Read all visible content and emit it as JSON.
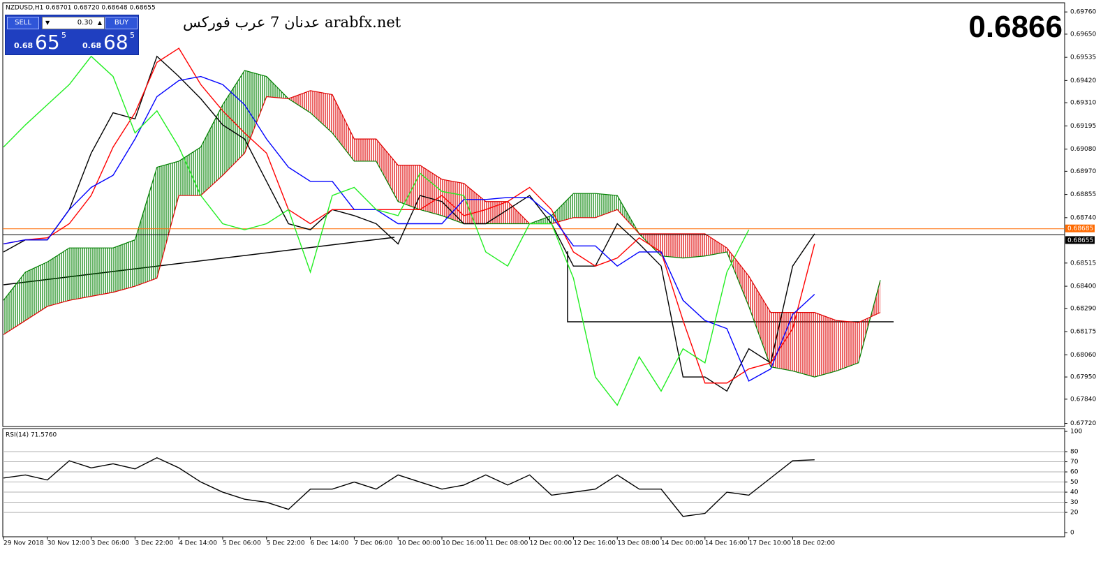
{
  "chart_data": [
    {
      "type": "line",
      "title": "NZDUSD,H1  0.68701 0.68720 0.68648 0.68655",
      "categories": [
        "29 Nov 2018",
        null,
        "30 Nov 12:00",
        null,
        "3 Dec 06:00",
        null,
        "3 Dec 22:00",
        null,
        "4 Dec 14:00",
        null,
        "5 Dec 06:00",
        null,
        "5 Dec 22:00",
        null,
        "6 Dec 14:00",
        null,
        "7 Dec 06:00",
        null,
        "10 Dec 00:00",
        null,
        "10 Dec 16:00",
        null,
        "11 Dec 08:00",
        null,
        "12 Dec 00:00",
        null,
        "12 Dec 16:00",
        null,
        "13 Dec 08:00",
        null,
        "14 Dec 00:00",
        null,
        "14 Dec 16:00",
        null,
        "17 Dec 10:00",
        null,
        "18 Dec 02:00",
        null,
        null,
        null,
        null
      ],
      "series": [
        {
          "color": "#000000",
          "values": [
            0.6857,
            0.6863,
            0.6863,
            0.6878,
            0.6906,
            0.6926,
            0.6923,
            0.6954,
            0.6944,
            0.6933,
            0.692,
            0.6913,
            0.6892,
            0.6871,
            0.6868,
            0.6878,
            0.6875,
            0.6871,
            0.6861,
            0.6885,
            0.6882,
            0.6871,
            0.6871,
            0.6878,
            0.6885,
            0.6871,
            0.685,
            0.685,
            0.6871,
            0.6861,
            0.685,
            0.6795,
            0.6795,
            0.6788,
            0.6809,
            0.6802,
            0.685,
            0.6866,
            null,
            null,
            null
          ]
        },
        {
          "color": "#ff0000",
          "values": [
            0.6861,
            0.6863,
            0.6864,
            0.6871,
            0.6885,
            0.6909,
            0.6926,
            0.6951,
            0.6958,
            0.694,
            0.6927,
            0.6916,
            0.6906,
            0.6878,
            0.6871,
            0.6878,
            0.6878,
            0.6878,
            0.6878,
            0.6878,
            0.6885,
            0.6875,
            0.6878,
            0.6882,
            0.6889,
            0.6878,
            0.6857,
            0.685,
            0.6854,
            0.6864,
            0.6857,
            0.6823,
            0.6792,
            0.6792,
            0.6799,
            0.6802,
            0.6819,
            0.6861,
            null,
            null,
            null
          ]
        },
        {
          "color": "#0000ff",
          "values": [
            0.6861,
            0.6863,
            0.6863,
            0.6878,
            0.6889,
            0.6895,
            0.6913,
            0.6934,
            0.6942,
            0.6944,
            0.694,
            0.693,
            0.6913,
            0.6899,
            0.6892,
            0.6892,
            0.6878,
            0.6878,
            0.6871,
            0.6871,
            0.6871,
            0.6883,
            0.6883,
            0.6884,
            0.6884,
            0.6875,
            0.686,
            0.686,
            0.685,
            0.6857,
            0.6857,
            0.6833,
            0.6823,
            0.6819,
            0.6793,
            0.6799,
            0.6826,
            0.6836,
            null,
            null,
            null
          ]
        },
        {
          "color": "#22ee22",
          "values": [
            0.6909,
            0.692,
            0.693,
            0.694,
            0.6954,
            0.6944,
            0.6916,
            0.6927,
            0.6909,
            0.6885,
            0.6871,
            0.6868,
            0.6871,
            0.6878,
            0.6847,
            0.6885,
            0.6889,
            0.6878,
            0.6875,
            0.6896,
            0.6887,
            0.6885,
            0.6857,
            0.685,
            0.6871,
            0.6871,
            0.6844,
            0.6795,
            0.6781,
            0.6805,
            0.6788,
            0.6809,
            0.6802,
            0.6847,
            0.6868,
            null,
            null,
            null,
            null,
            null,
            null
          ]
        }
      ],
      "cloud": {
        "up_color": "#008000",
        "down_color": "#e00000",
        "span_a": [
          0.6833,
          0.6847,
          0.6852,
          0.6859,
          0.6859,
          0.6859,
          0.6863,
          0.6899,
          0.6902,
          0.6909,
          0.693,
          0.6947,
          0.6944,
          0.6933,
          0.6926,
          0.6916,
          0.6902,
          0.6902,
          0.6882,
          0.6878,
          0.6875,
          0.6871,
          0.6871,
          0.6871,
          0.6871,
          0.6875,
          0.6886,
          0.6886,
          0.6885,
          0.6866,
          0.6855,
          0.6854,
          0.6855,
          0.6857,
          0.683,
          0.68,
          0.6798,
          0.6795,
          0.6798,
          0.6802,
          0.6843
        ],
        "span_b": [
          0.6816,
          0.6823,
          0.683,
          0.6833,
          0.6835,
          0.6837,
          0.684,
          0.6844,
          0.6885,
          0.6885,
          0.6895,
          0.6906,
          0.6934,
          0.6933,
          0.6937,
          0.6935,
          0.6913,
          0.6913,
          0.69,
          0.69,
          0.6893,
          0.6891,
          0.6882,
          0.6882,
          0.6871,
          0.6871,
          0.6874,
          0.6874,
          0.6878,
          0.6866,
          0.6866,
          0.6866,
          0.6866,
          0.6859,
          0.6845,
          0.6827,
          0.6827,
          0.6827,
          0.6823,
          0.6822,
          0.6827
        ]
      },
      "price_markers": [
        {
          "value": 0.68685,
          "label": "0.68685",
          "color": "#ff6a00"
        },
        {
          "value": 0.68655,
          "label": "0.68655",
          "color": "#000000"
        }
      ],
      "ylim": [
        0.67708,
        0.69802
      ],
      "yticks": [
        {
          "value": 0.6976,
          "label": "0.69760"
        },
        {
          "value": 0.6965,
          "label": "0.69650"
        },
        {
          "value": 0.69535,
          "label": "0.69535"
        },
        {
          "value": 0.6942,
          "label": "0.69420"
        },
        {
          "value": 0.6931,
          "label": "0.69310"
        },
        {
          "value": 0.69195,
          "label": "0.69195"
        },
        {
          "value": 0.6908,
          "label": "0.69080"
        },
        {
          "value": 0.6897,
          "label": "0.68970"
        },
        {
          "value": 0.68855,
          "label": "0.68855"
        },
        {
          "value": 0.6874,
          "label": "0.68740"
        },
        {
          "value": 0.68515,
          "label": "0.68515"
        },
        {
          "value": 0.684,
          "label": "0.68400"
        },
        {
          "value": 0.6829,
          "label": "0.68290"
        },
        {
          "value": 0.68175,
          "label": "0.68175"
        },
        {
          "value": 0.6806,
          "label": "0.68060"
        },
        {
          "value": 0.6795,
          "label": "0.67950"
        },
        {
          "value": 0.6784,
          "label": "0.67840"
        },
        {
          "value": 0.6772,
          "label": "0.67720"
        }
      ]
    },
    {
      "type": "line",
      "title": "RSI(14) 71.5760",
      "color": "#000000",
      "values": [
        54,
        57,
        52,
        71,
        64,
        68,
        63,
        74,
        64,
        50,
        40,
        33,
        30,
        23,
        43,
        43,
        50,
        43,
        57,
        50,
        43,
        47,
        57,
        47,
        57,
        37,
        40,
        43,
        57,
        43,
        43,
        16,
        19,
        40,
        37,
        54,
        71,
        72,
        null,
        null,
        null
      ],
      "ylim": [
        -3.4,
        102.1
      ],
      "yticks": [
        100,
        80,
        70,
        60,
        50,
        40,
        30,
        20,
        0
      ]
    }
  ],
  "trade_panel": {
    "sell": "SELL",
    "buy": "BUY",
    "volume": "0.30",
    "sell_prefix": "0.68",
    "sell_big": "65",
    "sell_sup": "5",
    "buy_prefix": "0.68",
    "buy_big": "68",
    "buy_sup": "5"
  },
  "watermark": "عدنان 7 عرب فوركس arabfx.net",
  "price_display": "0.6866"
}
